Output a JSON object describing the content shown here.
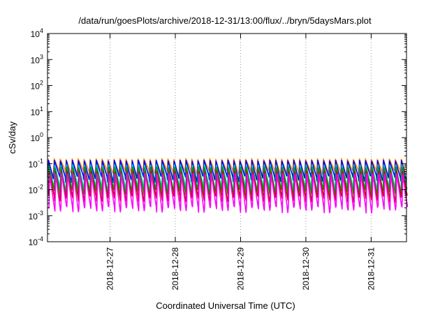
{
  "chart_data": {
    "type": "line",
    "title": "/data/run/goesPlots/archive/2018-12-31/13:00/flux/../bryn/5daysMars.plot",
    "xlabel": "Coordinated Universal Time (UTC)",
    "ylabel": "cSv/day",
    "yscale": "log",
    "ylim": [
      0.0001,
      10000
    ],
    "xlim": [
      "2018-12-26T01:00",
      "2018-12-31T13:00"
    ],
    "grid": true,
    "y_ticks": [
      {
        "base": "10",
        "exp": "4"
      },
      {
        "base": "10",
        "exp": "3"
      },
      {
        "base": "10",
        "exp": "2"
      },
      {
        "base": "10",
        "exp": "1"
      },
      {
        "base": "10",
        "exp": "0"
      },
      {
        "base": "10",
        "exp": "-1"
      },
      {
        "base": "10",
        "exp": "-2"
      },
      {
        "base": "10",
        "exp": "-3"
      },
      {
        "base": "10",
        "exp": "-4"
      }
    ],
    "x_ticks": [
      "2018-12-27",
      "2018-12-28",
      "2018-12-29",
      "2018-12-30",
      "2018-12-31"
    ],
    "sawtooth_teeth_count": 60,
    "series": [
      {
        "color": "#ff8c00",
        "peak": 0.15,
        "trough": 0.05
      },
      {
        "color": "#0000ff",
        "peak": 0.13,
        "trough": 0.03
      },
      {
        "color": "#00cccc",
        "peak": 0.09,
        "trough": 0.012
      },
      {
        "color": "#009900",
        "peak": 0.07,
        "trough": 0.009
      },
      {
        "color": "#cc0000",
        "peak": 0.05,
        "trough": 0.005
      },
      {
        "color": "#ff00ff",
        "peak": 0.04,
        "trough": 0.002
      }
    ]
  }
}
